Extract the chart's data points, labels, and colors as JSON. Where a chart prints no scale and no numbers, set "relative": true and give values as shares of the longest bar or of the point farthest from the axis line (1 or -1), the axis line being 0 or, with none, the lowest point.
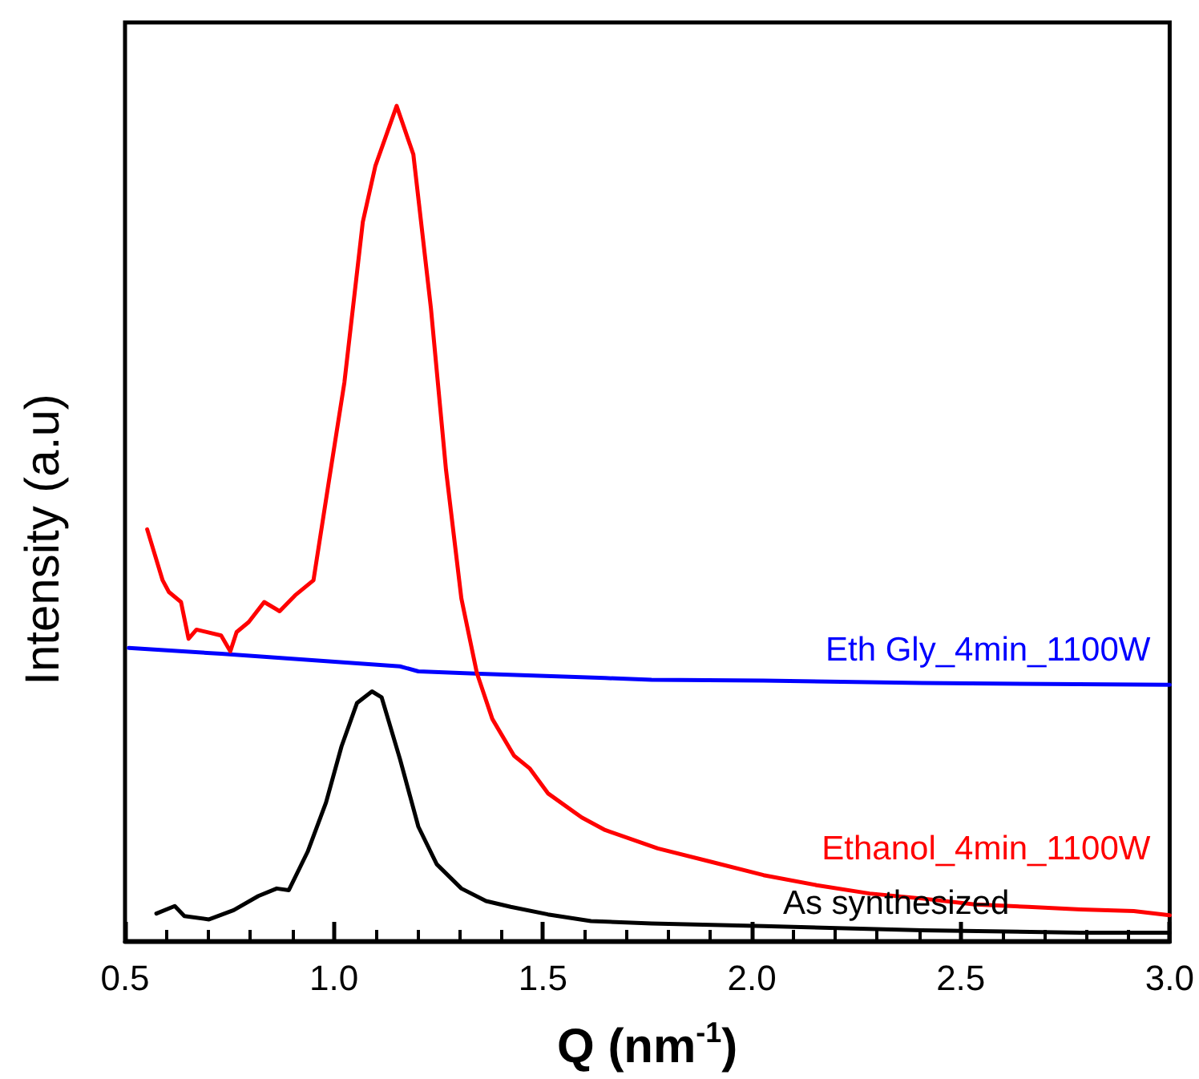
{
  "chart_data": {
    "type": "line",
    "relative": true,
    "xlabel": "Q (nm$^{-1}$)",
    "ylabel": "Intensity (a.u)",
    "xlim": [
      0.5,
      3.0
    ],
    "xticks": [
      {
        "value": 0.5,
        "label": "0.5"
      },
      {
        "value": 1,
        "label": "1.0"
      },
      {
        "value": 1.5,
        "label": "1.5"
      },
      {
        "value": 2,
        "label": "2.0"
      },
      {
        "value": 2.5,
        "label": "2.5"
      },
      {
        "value": 3,
        "label": "3.0"
      }
    ],
    "grid": false,
    "legend": false,
    "marker": "none",
    "line_style": "solid",
    "series": [
      {
        "name": "Eth Gly_4min_1100W",
        "color": "#0000ff",
        "x": [
          0.509,
          0.73,
          1.158,
          1.202,
          1.35,
          1.649,
          1.76,
          2.028,
          2.408,
          3.0
        ],
        "values": [
          0.351,
          0.344,
          0.329,
          0.323,
          0.32,
          0.315,
          0.313,
          0.312,
          0.309,
          0.307
        ]
      },
      {
        "name": "Ethanol_4min_1100W",
        "color": "#ff0000",
        "x": [
          0.553,
          0.59,
          0.605,
          0.634,
          0.652,
          0.671,
          0.73,
          0.752,
          0.767,
          0.796,
          0.833,
          0.87,
          0.907,
          0.951,
          0.988,
          1.025,
          1.069,
          1.099,
          1.15,
          1.19,
          1.232,
          1.268,
          1.305,
          1.342,
          1.379,
          1.431,
          1.468,
          1.512,
          1.593,
          1.649,
          1.775,
          1.902,
          2.028,
          2.155,
          2.282,
          2.408,
          2.534,
          2.661,
          2.787,
          2.914,
          3.0
        ],
        "values": [
          0.493,
          0.432,
          0.418,
          0.406,
          0.362,
          0.373,
          0.366,
          0.347,
          0.37,
          0.382,
          0.406,
          0.395,
          0.414,
          0.432,
          0.551,
          0.669,
          0.861,
          0.928,
          1.0,
          0.942,
          0.758,
          0.565,
          0.41,
          0.321,
          0.266,
          0.222,
          0.207,
          0.177,
          0.148,
          0.133,
          0.111,
          0.095,
          0.079,
          0.067,
          0.057,
          0.051,
          0.044,
          0.041,
          0.038,
          0.036,
          0.031
        ]
      },
      {
        "name": "As synthesized",
        "color": "#000000",
        "x": [
          0.575,
          0.619,
          0.642,
          0.701,
          0.76,
          0.819,
          0.863,
          0.892,
          0.937,
          0.981,
          1.018,
          1.055,
          1.091,
          1.114,
          1.158,
          1.202,
          1.246,
          1.305,
          1.364,
          1.423,
          1.512,
          1.615,
          1.76,
          2.028,
          2.408,
          2.787,
          3.0
        ],
        "values": [
          0.033,
          0.042,
          0.03,
          0.026,
          0.037,
          0.054,
          0.063,
          0.061,
          0.107,
          0.166,
          0.233,
          0.285,
          0.299,
          0.292,
          0.218,
          0.137,
          0.092,
          0.063,
          0.048,
          0.041,
          0.032,
          0.024,
          0.021,
          0.018,
          0.013,
          0.01,
          0.01
        ]
      }
    ]
  }
}
